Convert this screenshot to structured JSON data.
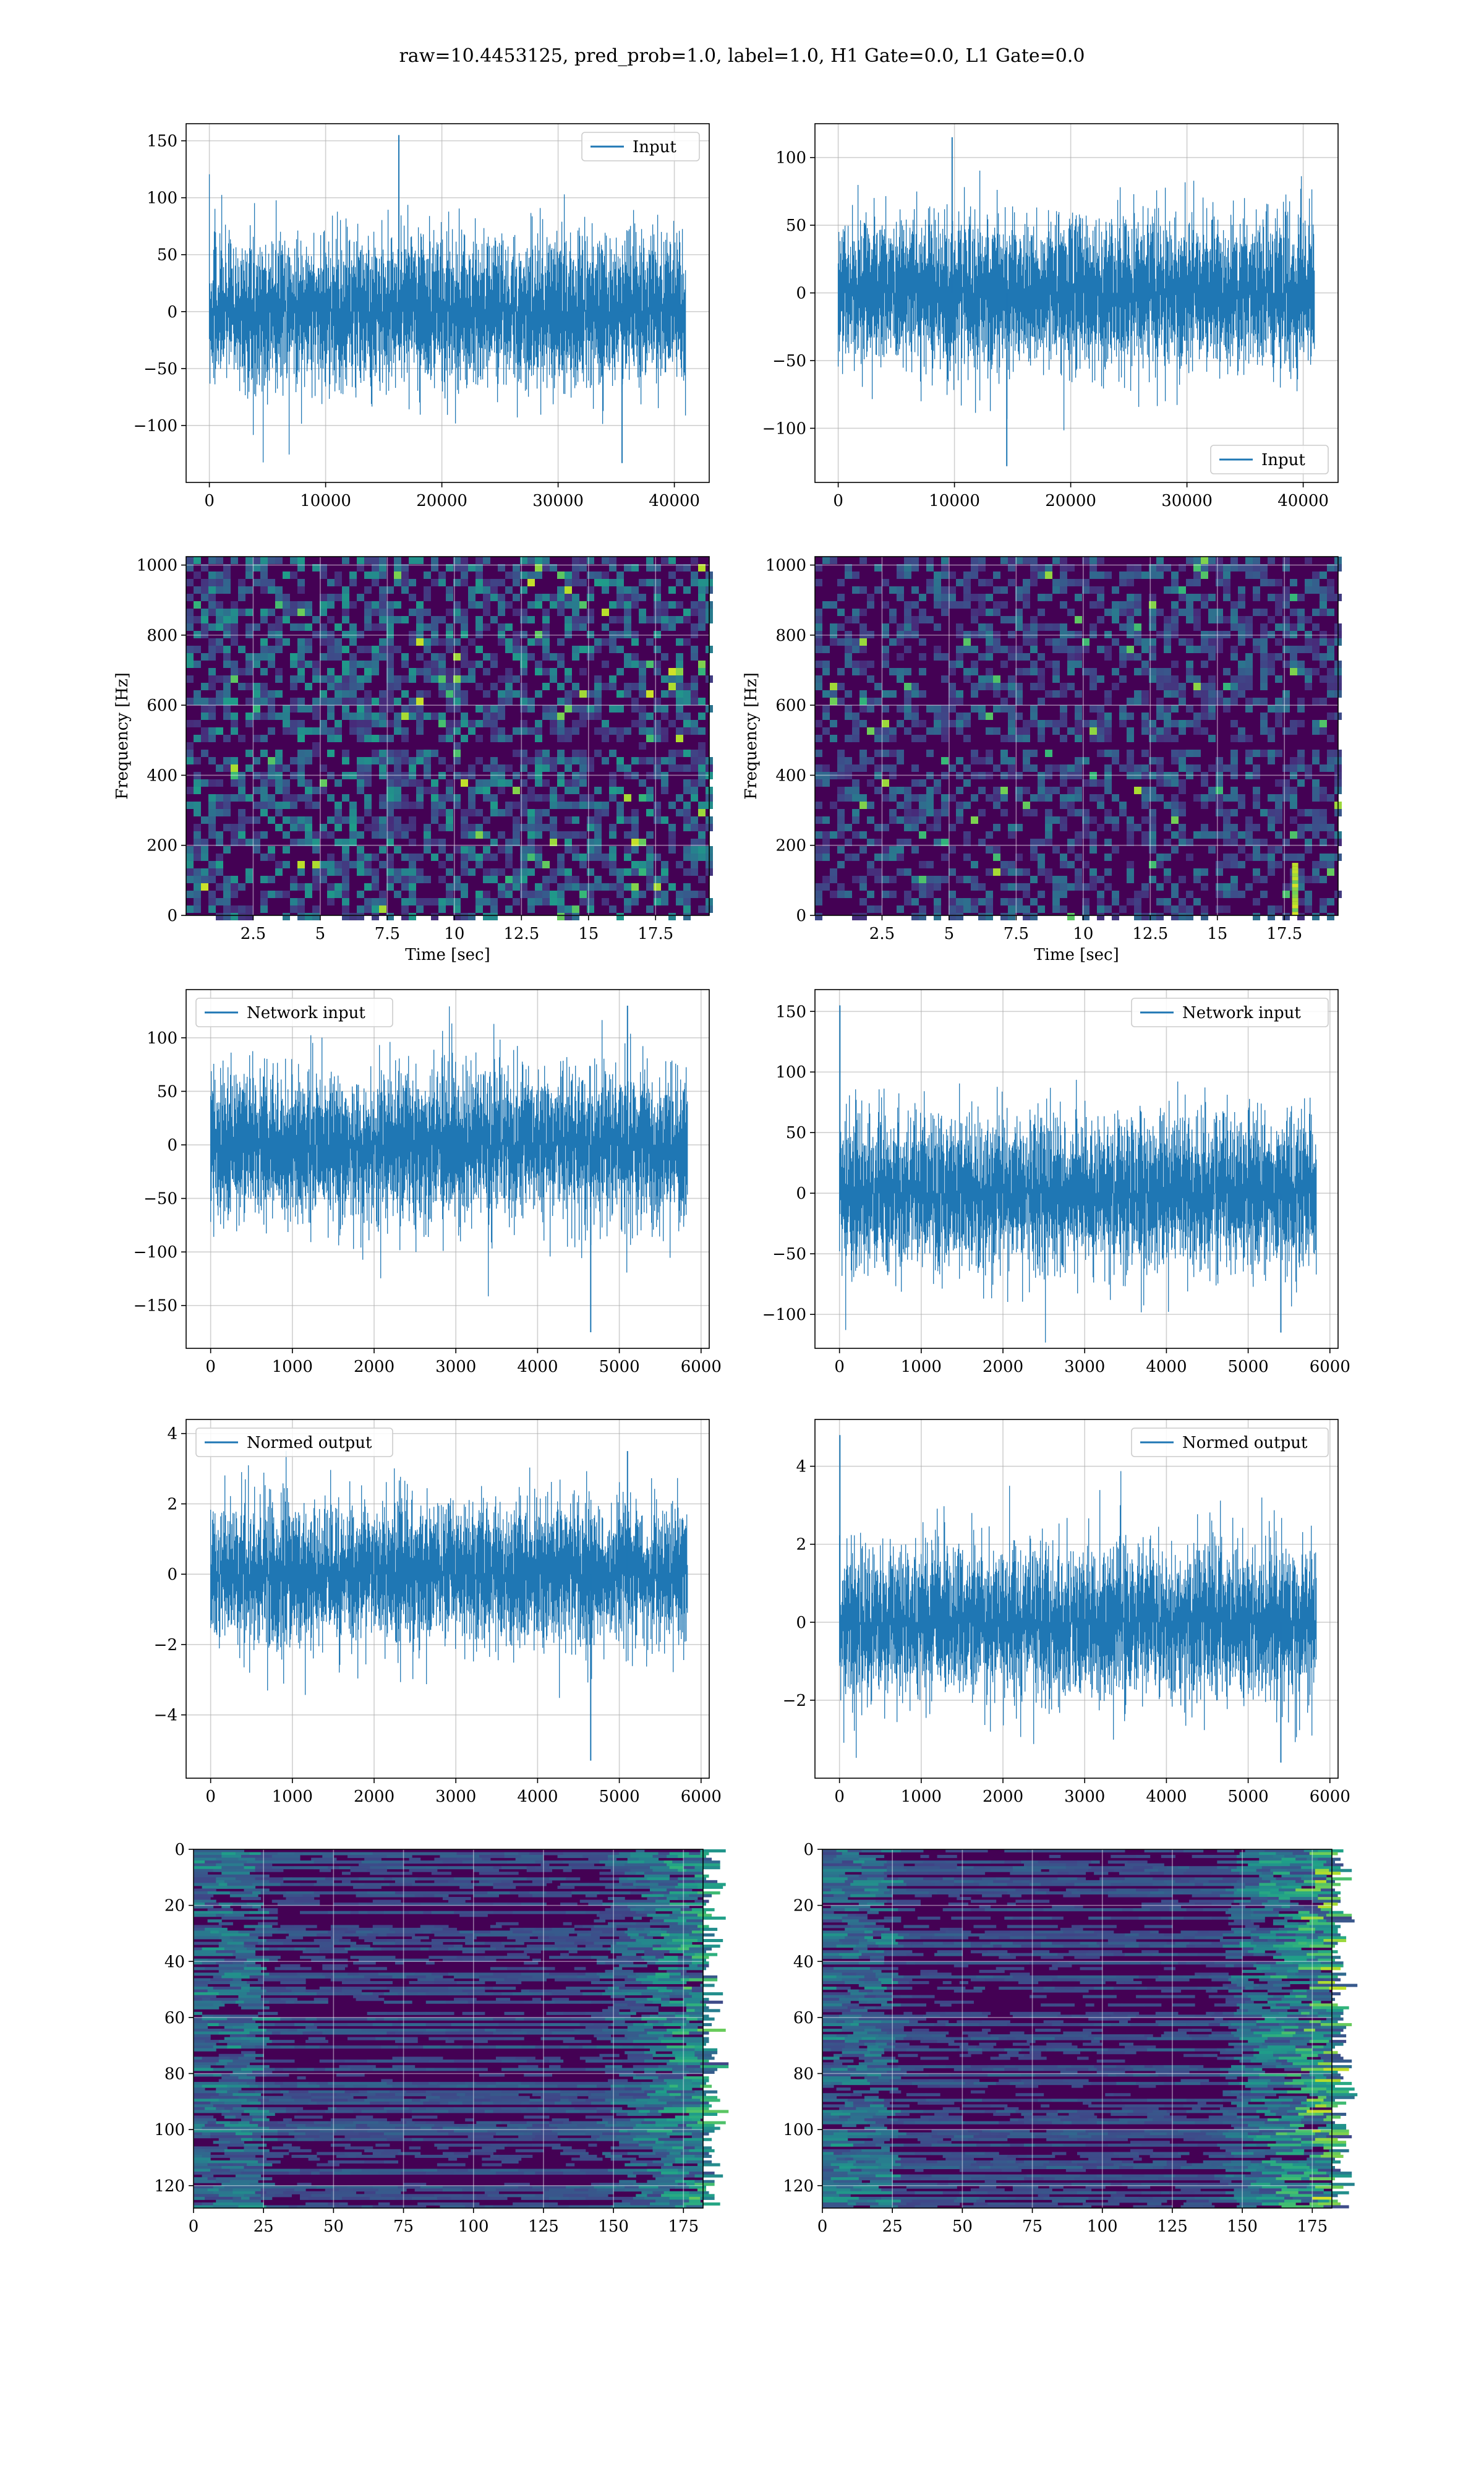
{
  "suptitle": "raw=10.4453125, pred_prob=1.0, label=1.0, H1 Gate=0.0, L1 Gate=0.0",
  "colors": {
    "line": "#1f77b4",
    "viridis_dark": "#440154",
    "viridis_mid": "#21918c",
    "viridis_bright": "#fde725",
    "grid": "#b0b0b0"
  },
  "chart_data": [
    {
      "id": "h1-input",
      "type": "line",
      "series": [
        {
          "name": "Input",
          "n_samples": 40960,
          "amplitude_envelope": [
            -130,
            155
          ],
          "spike_max": 155,
          "spike_max_at": 16300,
          "spike_min": -133,
          "spike_min_at": 35500
        }
      ],
      "xlim": [
        -2000,
        43000
      ],
      "ylim": [
        -150,
        165
      ],
      "xticks": [
        0,
        10000,
        20000,
        30000,
        40000
      ],
      "yticks": [
        -100,
        -50,
        0,
        50,
        100,
        150
      ],
      "legend": "top-right",
      "grid": true
    },
    {
      "id": "l1-input",
      "type": "line",
      "series": [
        {
          "name": "Input",
          "n_samples": 40960,
          "amplitude_envelope": [
            -128,
            115
          ],
          "spike_max": 115,
          "spike_max_at": 9800,
          "spike_min": -128,
          "spike_min_at": 14500
        }
      ],
      "xlim": [
        -2000,
        43000
      ],
      "ylim": [
        -140,
        125
      ],
      "xticks": [
        0,
        10000,
        20000,
        30000,
        40000
      ],
      "yticks": [
        -100,
        -50,
        0,
        50,
        100
      ],
      "legend": "bottom-right",
      "grid": true
    },
    {
      "id": "h1-spectrogram",
      "type": "heatmap",
      "xlabel": "Time [sec]",
      "ylabel": "Frequency [Hz]",
      "xlim": [
        0,
        19.5
      ],
      "ylim": [
        0,
        1024
      ],
      "xticks": [
        2.5,
        5.0,
        7.5,
        10.0,
        12.5,
        15.0,
        17.5
      ],
      "yticks": [
        0,
        200,
        400,
        600,
        800,
        1000
      ],
      "colormap": "viridis",
      "grid": true
    },
    {
      "id": "l1-spectrogram",
      "type": "heatmap",
      "xlabel": "Time [sec]",
      "ylabel": "Frequency [Hz]",
      "xlim": [
        0,
        19.5
      ],
      "ylim": [
        0,
        1024
      ],
      "xticks": [
        2.5,
        5.0,
        7.5,
        10.0,
        12.5,
        15.0,
        17.5
      ],
      "yticks": [
        0,
        200,
        400,
        600,
        800,
        1000
      ],
      "colormap": "viridis",
      "grid": true,
      "feature": {
        "t": 17.9,
        "f_range": [
          0,
          150
        ]
      }
    },
    {
      "id": "h1-network-input",
      "type": "line",
      "series": [
        {
          "name": "Network input",
          "n_samples": 5830,
          "amplitude_envelope": [
            -175,
            130
          ],
          "spike_max": 130,
          "spike_max_at": 5100,
          "spike_min": -175,
          "spike_min_at": 4650
        }
      ],
      "xlim": [
        -300,
        6100
      ],
      "ylim": [
        -190,
        145
      ],
      "xticks": [
        0,
        1000,
        2000,
        3000,
        4000,
        5000,
        6000
      ],
      "yticks": [
        -150,
        -100,
        -50,
        0,
        50,
        100
      ],
      "legend": "top-left",
      "grid": true
    },
    {
      "id": "l1-network-input",
      "type": "line",
      "series": [
        {
          "name": "Network input",
          "n_samples": 5830,
          "amplitude_envelope": [
            -115,
            155
          ],
          "spike_max": 155,
          "spike_max_at": 5,
          "spike_min": -115,
          "spike_min_at": 5400
        }
      ],
      "xlim": [
        -300,
        6100
      ],
      "ylim": [
        -128,
        168
      ],
      "xticks": [
        0,
        1000,
        2000,
        3000,
        4000,
        5000,
        6000
      ],
      "yticks": [
        -100,
        -50,
        0,
        50,
        100,
        150
      ],
      "legend": "top-right",
      "grid": true
    },
    {
      "id": "h1-normed-output",
      "type": "line",
      "series": [
        {
          "name": "Normed output",
          "n_samples": 5830,
          "amplitude_envelope": [
            -5.3,
            3.5
          ],
          "spike_max": 3.5,
          "spike_max_at": 5100,
          "spike_min": -5.3,
          "spike_min_at": 4650
        }
      ],
      "xlim": [
        -300,
        6100
      ],
      "ylim": [
        -5.8,
        4.4
      ],
      "xticks": [
        0,
        1000,
        2000,
        3000,
        4000,
        5000,
        6000
      ],
      "yticks": [
        -4,
        -2,
        0,
        2,
        4
      ],
      "legend": "top-left",
      "grid": true
    },
    {
      "id": "l1-normed-output",
      "type": "line",
      "series": [
        {
          "name": "Normed output",
          "n_samples": 5830,
          "amplitude_envelope": [
            -3.6,
            4.8
          ],
          "spike_max": 4.8,
          "spike_max_at": 5,
          "spike_min": -3.6,
          "spike_min_at": 5400
        }
      ],
      "xlim": [
        -300,
        6100
      ],
      "ylim": [
        -4.0,
        5.2
      ],
      "xticks": [
        0,
        1000,
        2000,
        3000,
        4000,
        5000,
        6000
      ],
      "yticks": [
        -2,
        0,
        2,
        4
      ],
      "legend": "top-right",
      "grid": true
    },
    {
      "id": "h1-feature-map",
      "type": "heatmap",
      "xlim": [
        0,
        182
      ],
      "ylim": [
        128,
        0
      ],
      "xticks": [
        0,
        25,
        50,
        75,
        100,
        125,
        150,
        175
      ],
      "yticks": [
        0,
        20,
        40,
        60,
        80,
        100,
        120
      ],
      "colormap": "viridis",
      "grid": true
    },
    {
      "id": "l1-feature-map",
      "type": "heatmap",
      "xlim": [
        0,
        182
      ],
      "ylim": [
        128,
        0
      ],
      "xticks": [
        0,
        25,
        50,
        75,
        100,
        125,
        150,
        175
      ],
      "yticks": [
        0,
        20,
        40,
        60,
        80,
        100,
        120
      ],
      "colormap": "viridis",
      "grid": true
    }
  ]
}
